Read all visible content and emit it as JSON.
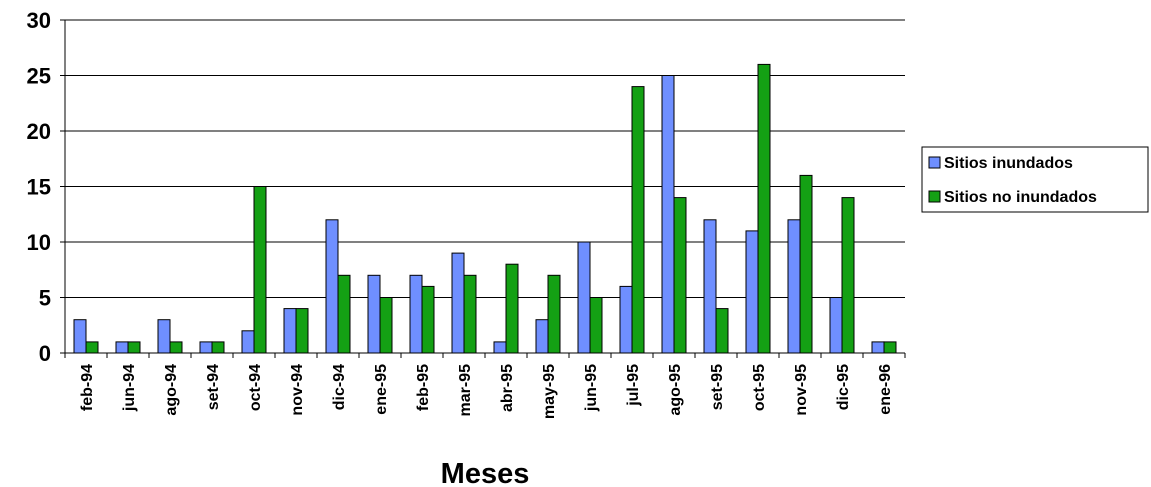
{
  "chart_data": {
    "type": "bar",
    "title": "",
    "xlabel": "Meses",
    "ylabel": "",
    "ylim": [
      0,
      30
    ],
    "yticks": [
      0,
      5,
      10,
      15,
      20,
      25,
      30
    ],
    "grid": true,
    "legend_position": "right",
    "categories": [
      "feb-94",
      "jun-94",
      "ago-94",
      "set-94",
      "oct-94",
      "nov-94",
      "dic-94",
      "ene-95",
      "feb-95",
      "mar-95",
      "abr-95",
      "may-95",
      "jun-95",
      "jul-95",
      "ago-95",
      "set-95",
      "oct-95",
      "nov-95",
      "dic-95",
      "ene-96"
    ],
    "series": [
      {
        "name": "Sitios inundados",
        "color": "#6f8fff",
        "values": [
          3,
          1,
          3,
          1,
          2,
          4,
          12,
          7,
          7,
          9,
          1,
          3,
          10,
          6,
          25,
          12,
          11,
          12,
          5,
          1
        ]
      },
      {
        "name": "Sitios no inundados",
        "color": "#14a014",
        "values": [
          1,
          1,
          1,
          1,
          15,
          4,
          7,
          5,
          6,
          7,
          8,
          7,
          5,
          24,
          14,
          4,
          26,
          16,
          14,
          1
        ]
      }
    ]
  }
}
